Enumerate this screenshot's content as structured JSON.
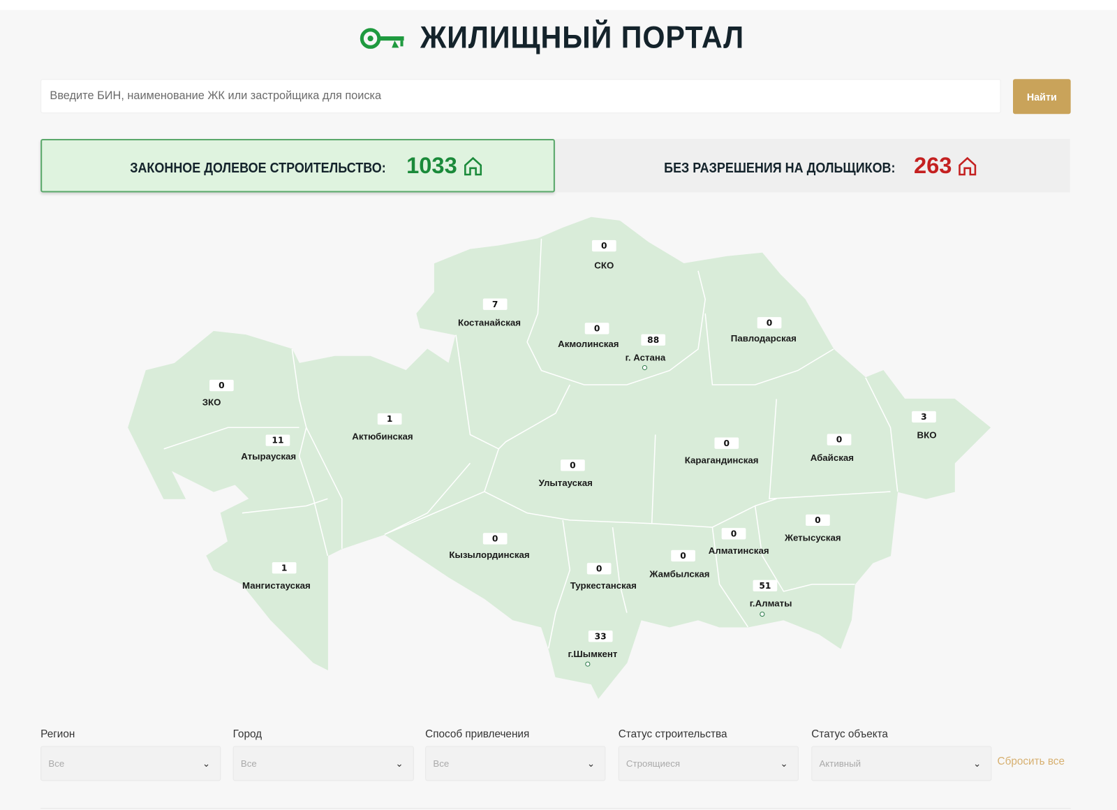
{
  "header": {
    "title": "ЖИЛИЩНЫЙ ПОРТАЛ",
    "logo": "key-house-logo",
    "accent": "#1f9a3f"
  },
  "search": {
    "placeholder": "Введите БИН, наименование ЖК или застройщика для поиска",
    "value": "",
    "button": "Найти",
    "button_color": "#c9a35a"
  },
  "stats": [
    {
      "label": "ЗАКОННОЕ ДОЛЕВОЕ СТРОИТЕЛЬСТВО:",
      "value": "1033",
      "icon": "house-icon",
      "color": "#1a8a3a"
    },
    {
      "label": "БЕЗ РАЗРЕШЕНИЯ НА ДОЛЬЩИКОВ:",
      "value": "263",
      "icon": "house-icon",
      "color": "#c42020"
    }
  ],
  "map": {
    "fill": "#d9ecd9",
    "regions": [
      {
        "name": "СКО",
        "value": "0"
      },
      {
        "name": "Костанайская",
        "value": "7"
      },
      {
        "name": "Акмолинская",
        "value": "0"
      },
      {
        "name": "г. Астана",
        "value": "88"
      },
      {
        "name": "Павлодарская",
        "value": "0"
      },
      {
        "name": "ЗКО",
        "value": "0"
      },
      {
        "name": "Атырауская",
        "value": "11"
      },
      {
        "name": "Актюбинская",
        "value": "1"
      },
      {
        "name": "Карагандинская",
        "value": "0"
      },
      {
        "name": "Абайская",
        "value": "0"
      },
      {
        "name": "ВКО",
        "value": "3"
      },
      {
        "name": "Улытауская",
        "value": "0"
      },
      {
        "name": "Кызылординская",
        "value": "0"
      },
      {
        "name": "Жетысуская",
        "value": "0"
      },
      {
        "name": "Алматинская",
        "value": "0"
      },
      {
        "name": "Жамбылская",
        "value": "0"
      },
      {
        "name": "Туркестанская",
        "value": "0"
      },
      {
        "name": "Мангистауская",
        "value": "1"
      },
      {
        "name": "г.Алматы",
        "value": "51"
      },
      {
        "name": "г.Шымкент",
        "value": "33"
      }
    ]
  },
  "filters": [
    {
      "label": "Регион",
      "value": "Все"
    },
    {
      "label": "Город",
      "value": "Все"
    },
    {
      "label": "Способ привлечения",
      "value": "Все"
    },
    {
      "label": "Статус строительства",
      "value": "Строящиеся"
    },
    {
      "label": "Статус объекта",
      "value": "Активный"
    }
  ],
  "reset_label": "Сбросить все"
}
